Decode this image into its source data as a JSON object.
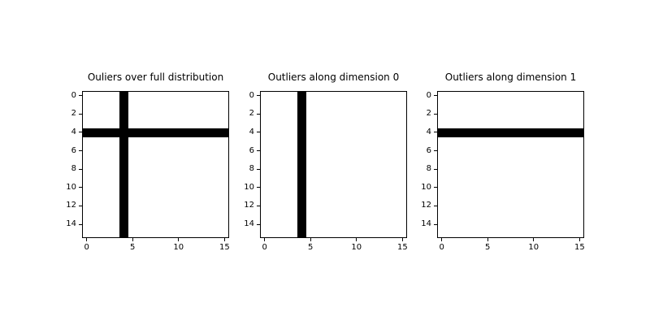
{
  "figure": {
    "background_color": "#ffffff",
    "text_color": "#000000",
    "axes_edge_color": "#000000",
    "outlier_color": "#000000",
    "cell_background": "#ffffff"
  },
  "chart_data": [
    {
      "type": "heatmap",
      "title": "Ouliers over full distribution",
      "grid_rows": 16,
      "grid_cols": 16,
      "x_extent": [
        -0.5,
        15.5
      ],
      "y_extent": [
        -0.5,
        15.5
      ],
      "x_ticks": [
        0,
        5,
        10,
        15
      ],
      "y_ticks": [
        0,
        2,
        4,
        6,
        8,
        10,
        12,
        14
      ],
      "background_value": "white",
      "black_cols": [
        4
      ],
      "black_rows": [
        4
      ],
      "legend": "none",
      "grid_lines": "off"
    },
    {
      "type": "heatmap",
      "title": "Outliers along dimension 0",
      "grid_rows": 16,
      "grid_cols": 16,
      "x_extent": [
        -0.5,
        15.5
      ],
      "y_extent": [
        -0.5,
        15.5
      ],
      "x_ticks": [
        0,
        5,
        10,
        15
      ],
      "y_ticks": [
        0,
        2,
        4,
        6,
        8,
        10,
        12,
        14
      ],
      "background_value": "white",
      "black_cols": [
        4
      ],
      "black_rows": [],
      "legend": "none",
      "grid_lines": "off"
    },
    {
      "type": "heatmap",
      "title": "Outliers along dimension 1",
      "grid_rows": 16,
      "grid_cols": 16,
      "x_extent": [
        -0.5,
        15.5
      ],
      "y_extent": [
        -0.5,
        15.5
      ],
      "x_ticks": [
        0,
        5,
        10,
        15
      ],
      "y_ticks": [
        0,
        2,
        4,
        6,
        8,
        10,
        12,
        14
      ],
      "background_value": "white",
      "black_cols": [],
      "black_rows": [
        4
      ],
      "legend": "none",
      "grid_lines": "off"
    }
  ]
}
